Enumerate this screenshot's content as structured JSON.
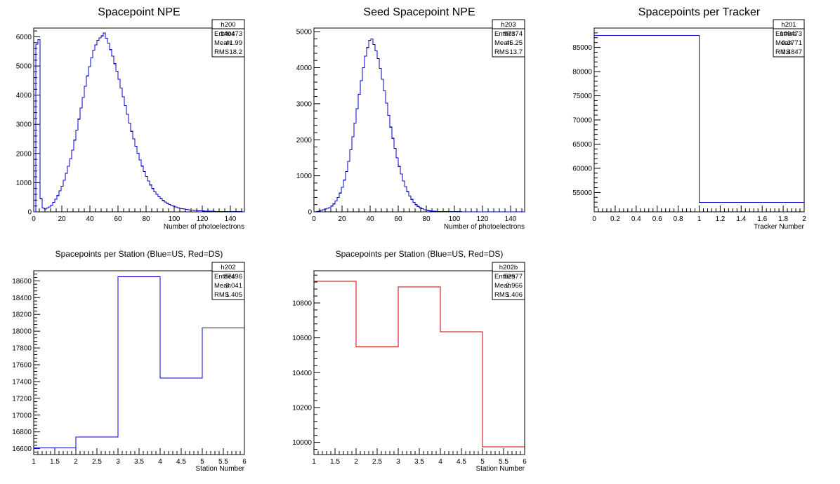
{
  "chart_data": [
    {
      "type": "histogram",
      "title": "Spacepoint NPE",
      "xlabel": "Number of photoelectrons",
      "ylabel": "",
      "xlim": [
        0,
        150
      ],
      "ylim": [
        0,
        6300
      ],
      "x_ticks": [
        0,
        20,
        40,
        60,
        80,
        100,
        120,
        140
      ],
      "y_ticks": [
        0,
        1000,
        2000,
        3000,
        4000,
        5000,
        6000
      ],
      "bin_width": 1.5,
      "line_color": "#0000cc",
      "stats": {
        "name": "h200",
        "rows": [
          [
            "Entries",
            "140473"
          ],
          [
            "Mean",
            "41.99"
          ],
          [
            "RMS",
            "18.2"
          ]
        ]
      },
      "values": [
        0,
        5750,
        5900,
        450,
        130,
        100,
        130,
        170,
        230,
        320,
        430,
        560,
        720,
        880,
        1080,
        1320,
        1560,
        1820,
        2120,
        2460,
        2800,
        3180,
        3560,
        3920,
        4300,
        4660,
        4980,
        5280,
        5540,
        5720,
        5880,
        5960,
        6030,
        6130,
        5950,
        5780,
        5560,
        5340,
        5080,
        4820,
        4540,
        4240,
        3940,
        3640,
        3340,
        3040,
        2760,
        2500,
        2250,
        2010,
        1780,
        1570,
        1380,
        1210,
        1060,
        920,
        800,
        690,
        600,
        520,
        450,
        390,
        340,
        295,
        255,
        220,
        190,
        165,
        145,
        125,
        110,
        96,
        84,
        74,
        65,
        57,
        50,
        44,
        39,
        34,
        30,
        27,
        24,
        21,
        19,
        17,
        15,
        13,
        12,
        11,
        10,
        9,
        8,
        7,
        7,
        6,
        6,
        5,
        5,
        4
      ]
    },
    {
      "type": "histogram",
      "title": "Seed Spacepoint NPE",
      "xlabel": "Number of photoelectrons",
      "ylabel": "",
      "xlim": [
        0,
        150
      ],
      "ylim": [
        0,
        5100
      ],
      "x_ticks": [
        0,
        20,
        40,
        60,
        80,
        100,
        120,
        140
      ],
      "y_ticks": [
        0,
        1000,
        2000,
        3000,
        4000,
        5000
      ],
      "bin_width": 1.5,
      "line_color": "#0000cc",
      "stats": {
        "name": "h203",
        "rows": [
          [
            "Entries",
            "97374"
          ],
          [
            "Mean",
            "45.25"
          ],
          [
            "RMS",
            "13.7"
          ]
        ]
      },
      "values": [
        0,
        10,
        20,
        40,
        60,
        80,
        100,
        120,
        160,
        220,
        300,
        400,
        520,
        680,
        880,
        1120,
        1400,
        1720,
        2080,
        2460,
        2860,
        3260,
        3640,
        4000,
        4320,
        4560,
        4760,
        4800,
        4640,
        4470,
        4250,
        3980,
        3680,
        3360,
        3020,
        2680,
        2350,
        2040,
        1760,
        1500,
        1260,
        1050,
        860,
        700,
        560,
        440,
        345,
        265,
        200,
        150,
        112,
        84,
        62,
        46,
        34,
        25,
        19,
        14,
        11,
        9,
        8,
        7,
        7,
        6,
        6,
        5,
        5,
        4,
        4,
        4,
        3,
        3,
        3,
        3,
        2,
        2,
        2,
        2,
        2,
        2,
        2,
        2,
        1,
        1,
        1,
        1,
        1,
        1,
        1,
        1,
        1,
        1,
        1,
        1,
        1,
        1,
        1,
        1,
        1,
        1
      ]
    },
    {
      "type": "histogram",
      "title": "Spacepoints per Tracker",
      "xlabel": "Tracker Number",
      "ylabel": "",
      "xlim": [
        0,
        2
      ],
      "ylim": [
        51000,
        89000
      ],
      "x_ticks": [
        0,
        0.2,
        0.4,
        0.6,
        0.8,
        1,
        1.2,
        1.4,
        1.6,
        1.8,
        2
      ],
      "x_tick_labels": [
        "0",
        "0.2",
        "0.4",
        "0.6",
        "0.8",
        "1",
        "1.2",
        "1.4",
        "1.6",
        "1.8",
        "2"
      ],
      "y_ticks": [
        55000,
        60000,
        65000,
        70000,
        75000,
        80000,
        85000
      ],
      "bin_edges": [
        0,
        1,
        2
      ],
      "line_color": "#0000cc",
      "stats": {
        "name": "h201",
        "rows": [
          [
            "Entries",
            "140473"
          ],
          [
            "Mean",
            "0.3771"
          ],
          [
            "RMS",
            "0.4847"
          ]
        ]
      },
      "values": [
        87496,
        52977
      ]
    },
    {
      "type": "histogram",
      "title": "Spacepoints per Station (Blue=US, Red=DS)",
      "xlabel": "Station Number",
      "ylabel": "",
      "xlim": [
        1,
        6
      ],
      "ylim": [
        16530,
        18720
      ],
      "x_ticks": [
        1,
        1.5,
        2,
        2.5,
        3,
        3.5,
        4,
        4.5,
        5,
        5.5,
        6
      ],
      "x_tick_labels": [
        "1",
        "1.5",
        "2",
        "2.5",
        "3",
        "3.5",
        "4",
        "4.5",
        "5",
        "5.5",
        "6"
      ],
      "y_ticks": [
        16600,
        16800,
        17000,
        17200,
        17400,
        17600,
        17800,
        18000,
        18200,
        18400,
        18600
      ],
      "bin_edges": [
        1,
        2,
        3,
        4,
        5,
        6
      ],
      "line_color": "#0000cc",
      "stats": {
        "name": "h202",
        "rows": [
          [
            "Entries",
            "87496"
          ],
          [
            "Mean",
            "3.041"
          ],
          [
            "RMS",
            "1.405"
          ]
        ]
      },
      "values": [
        16610,
        16740,
        18650,
        17440,
        18040
      ]
    },
    {
      "type": "histogram",
      "title": "Spacepoints per Station (Blue=US, Red=DS)",
      "xlabel": "Station Number",
      "ylabel": "",
      "xlim": [
        1,
        6
      ],
      "ylim": [
        9930,
        10985
      ],
      "x_ticks": [
        1,
        1.5,
        2,
        2.5,
        3,
        3.5,
        4,
        4.5,
        5,
        5.5,
        6
      ],
      "x_tick_labels": [
        "1",
        "1.5",
        "2",
        "2.5",
        "3",
        "3.5",
        "4",
        "4.5",
        "5",
        "5.5",
        "6"
      ],
      "y_ticks": [
        10000,
        10200,
        10400,
        10600,
        10800
      ],
      "bin_edges": [
        1,
        2,
        3,
        4,
        5,
        6
      ],
      "line_color": "#cc0000",
      "stats": {
        "name": "h202b",
        "rows": [
          [
            "Entries",
            "52977"
          ],
          [
            "Mean",
            "2.966"
          ],
          [
            "RMS",
            "1.406"
          ]
        ]
      },
      "values": [
        10925,
        10548,
        10892,
        10634,
        9975
      ]
    }
  ]
}
